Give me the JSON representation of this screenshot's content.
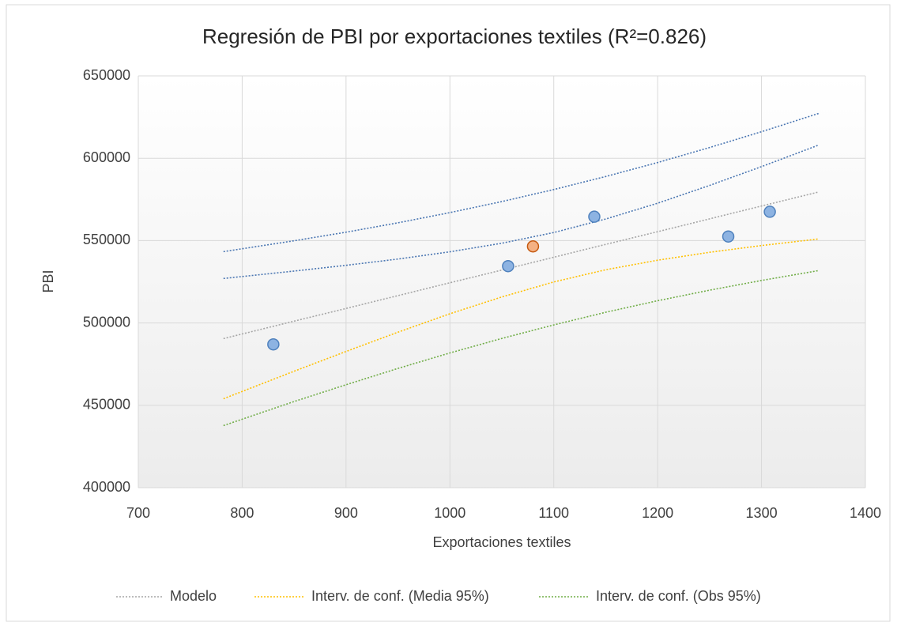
{
  "chart_data": {
    "type": "scatter",
    "title": "Regresión de PBI por exportaciones textiles (R²=0.826)",
    "x_label": "Exportaciones textiles",
    "y_label": "PBI",
    "xlim": [
      700,
      1400
    ],
    "xticks": [
      700,
      800,
      900,
      1000,
      1100,
      1200,
      1300,
      1400
    ],
    "ylim": [
      400000,
      650000
    ],
    "yticks": [
      400000,
      450000,
      500000,
      550000,
      600000,
      650000
    ],
    "grid": true,
    "legend": "bottom",
    "series": [
      {
        "mode": "markers",
        "color": "#8db3e2",
        "edge": "#4f81bd",
        "x": [
          830,
          1056,
          1139,
          1268,
          1308
        ],
        "values": [
          487000,
          534500,
          564500,
          552500,
          567500
        ]
      },
      {
        "mode": "markers",
        "color": "#f4b183",
        "edge": "#c55a11",
        "x": [
          1080
        ],
        "values": [
          546500
        ]
      },
      {
        "mode": "lines",
        "name": "Modelo",
        "color": "#a6a6a6",
        "x": [
          782,
          850,
          900,
          950,
          1000,
          1050,
          1100,
          1150,
          1200,
          1250,
          1300,
          1355
        ],
        "values": [
          490500,
          501100,
          508800,
          516600,
          524400,
          532100,
          539900,
          547700,
          555400,
          563200,
          571000,
          579500
        ]
      },
      {
        "mode": "lines",
        "name": "Interv. de conf. (Media 95%)",
        "color": "#ffc000",
        "x": [
          782,
          850,
          900,
          950,
          1000,
          1050,
          1100,
          1150,
          1200,
          1250,
          1300,
          1355
        ],
        "values": [
          454000,
          470700,
          482700,
          494400,
          505600,
          515800,
          524900,
          532300,
          538100,
          542900,
          547000,
          551000
        ]
      },
      {
        "mode": "lines",
        "color": "#4a76b2",
        "x": [
          782,
          850,
          900,
          950,
          1000,
          1050,
          1100,
          1150,
          1200,
          1250,
          1300,
          1355
        ],
        "values": [
          527000,
          531500,
          535000,
          538800,
          543200,
          548400,
          554900,
          563100,
          572700,
          583500,
          594900,
          608000
        ]
      },
      {
        "mode": "lines",
        "name": "Interv. de conf. (Obs 95%)",
        "color": "#70ad47",
        "x": [
          782,
          850,
          900,
          950,
          1000,
          1050,
          1100,
          1150,
          1200,
          1250,
          1300,
          1355
        ],
        "values": [
          437700,
          452300,
          462500,
          472400,
          481800,
          490600,
          498800,
          506500,
          513500,
          519900,
          525800,
          531800
        ]
      },
      {
        "mode": "lines",
        "color": "#4a76b2",
        "x": [
          782,
          850,
          900,
          950,
          1000,
          1050,
          1100,
          1150,
          1200,
          1250,
          1300,
          1355
        ],
        "values": [
          543300,
          549900,
          555100,
          560800,
          567000,
          573700,
          581000,
          588900,
          597400,
          606500,
          616100,
          627200
        ]
      }
    ]
  }
}
